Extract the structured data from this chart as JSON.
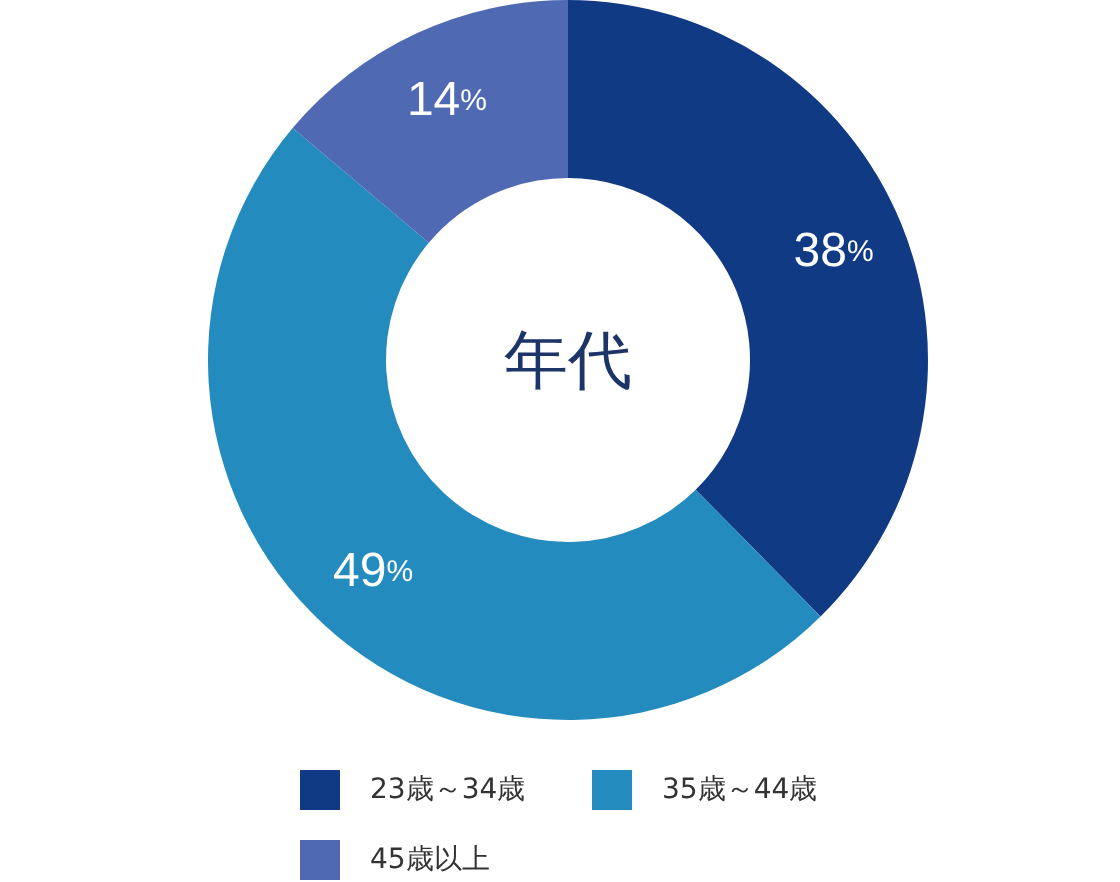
{
  "chart_data": {
    "type": "donut",
    "title": "年代",
    "categories": [
      "23歳～34歳",
      "35歳～44歳",
      "45歳以上"
    ],
    "values": [
      38,
      49,
      14
    ],
    "colors": [
      "#113a85",
      "#248bbe",
      "#5069b3"
    ],
    "value_labels": [
      "38%",
      "49%",
      "14%"
    ],
    "legend": "bottom"
  }
}
